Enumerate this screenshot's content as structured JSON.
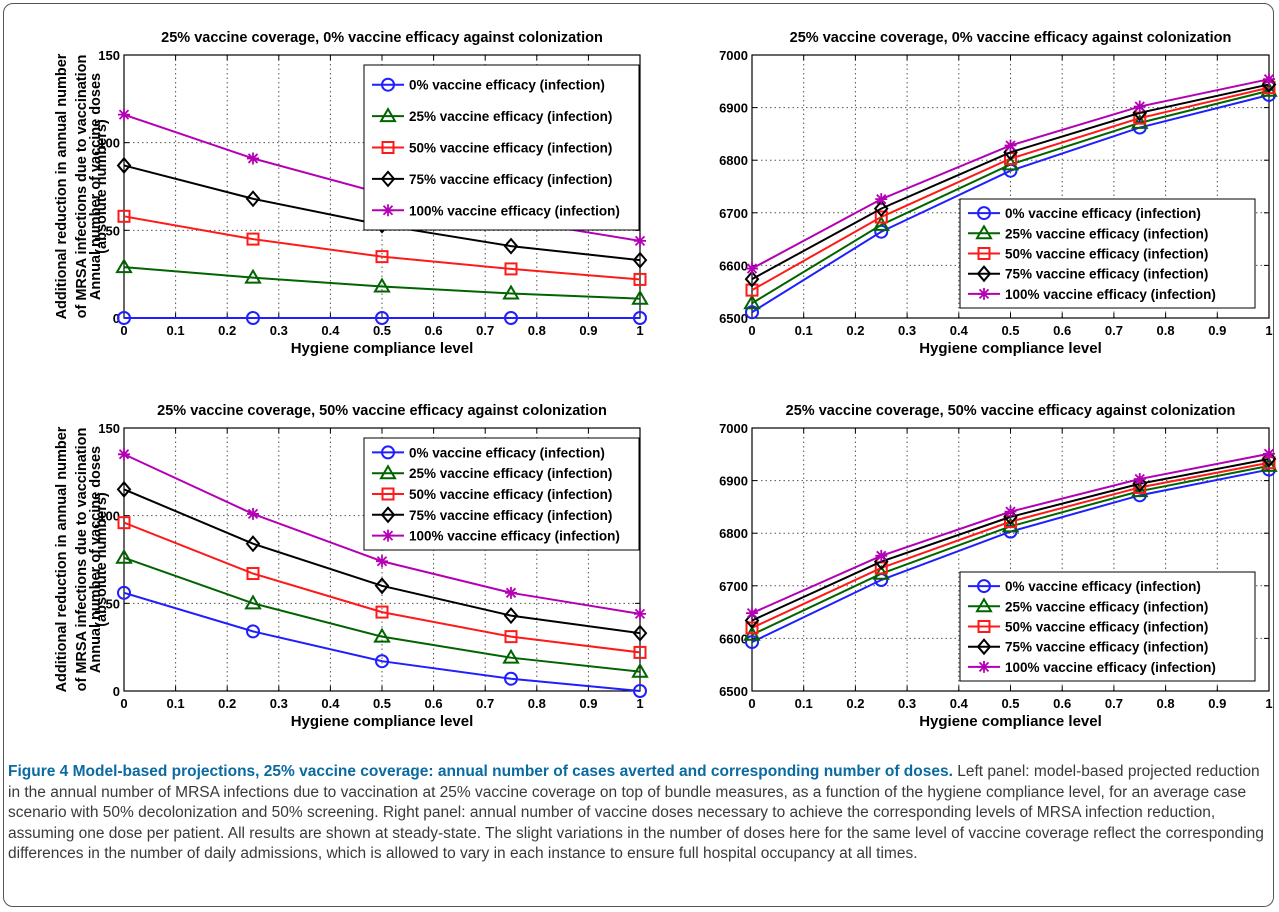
{
  "caption": {
    "title": "Figure 4 Model-based projections, 25% vaccine coverage: annual number of cases averted and corresponding number of doses.",
    "text": " Left panel: model-based projected reduction in the annual number of MRSA infections due to vaccination at 25% vaccine coverage on top of bundle measures, as a function of the hygiene compliance level, for an average case scenario with 50% decolonization and 50% screening. Right panel: annual number of vaccine doses necessary to achieve the corresponding levels of MRSA infection reduction, assuming one dose per patient. All results are shown at steady-state. The slight variations in the number of doses here for the same level of vaccine coverage reflect the corresponding differences in the number of daily admissions, which is allowed to vary in each instance to ensure full hospital occupancy at all times."
  },
  "chart_data": [
    {
      "type": "line",
      "title": "25% vaccine coverage, 0% vaccine efficacy against colonization",
      "xlabel": "Hygiene compliance level",
      "ylabel_lines": [
        "Additional reduction in annual number",
        "of MRSA infections due to vaccination",
        "(absolute numbers)"
      ],
      "xlim": [
        0,
        1
      ],
      "ylim": [
        0,
        150
      ],
      "xticks": [
        0,
        0.1,
        0.2,
        0.3,
        0.4,
        0.5,
        0.6,
        0.7,
        0.8,
        0.9,
        1
      ],
      "xtick_labels": [
        "0",
        "0.1",
        "0.2",
        "0.3",
        "0.4",
        "0.5",
        "0.6",
        "0.7",
        "0.8",
        "0.9",
        "1"
      ],
      "yticks": [
        0,
        50,
        100,
        150
      ],
      "ytick_labels": [
        "0",
        "50",
        "100",
        "150"
      ],
      "grid": true,
      "legend_position": "top-right",
      "x": [
        0,
        0.25,
        0.5,
        0.75,
        1
      ],
      "series": [
        {
          "name": "0% vaccine efficacy (infection)",
          "color": "#1f1fff",
          "marker": "circle",
          "values": [
            0,
            0,
            0,
            0,
            0
          ]
        },
        {
          "name": "25% vaccine efficacy (infection)",
          "color": "#006400",
          "marker": "triangle",
          "values": [
            29,
            23,
            18,
            14,
            11
          ]
        },
        {
          "name": "50% vaccine efficacy (infection)",
          "color": "#ff1a1a",
          "marker": "square",
          "values": [
            58,
            45,
            35,
            28,
            22
          ]
        },
        {
          "name": "75% vaccine efficacy (infection)",
          "color": "#000000",
          "marker": "diamond",
          "values": [
            87,
            68,
            53,
            41,
            33
          ]
        },
        {
          "name": "100% vaccine efficacy (infection)",
          "color": "#b400b4",
          "marker": "star",
          "values": [
            116,
            91,
            71,
            56,
            44
          ]
        }
      ]
    },
    {
      "type": "line",
      "title": "25% vaccine coverage, 0% vaccine efficacy against colonization",
      "xlabel": "Hygiene compliance level",
      "ylabel_lines": [
        "Annual number of vaccine doses"
      ],
      "xlim": [
        0,
        1
      ],
      "ylim": [
        6500,
        7000
      ],
      "xticks": [
        0,
        0.1,
        0.2,
        0.3,
        0.4,
        0.5,
        0.6,
        0.7,
        0.8,
        0.9,
        1
      ],
      "xtick_labels": [
        "0",
        "0.1",
        "0.2",
        "0.3",
        "0.4",
        "0.5",
        "0.6",
        "0.7",
        "0.8",
        "0.9",
        "1"
      ],
      "yticks": [
        6500,
        6600,
        6700,
        6800,
        6900,
        7000
      ],
      "ytick_labels": [
        "6500",
        "6600",
        "6700",
        "6800",
        "6900",
        "7000"
      ],
      "grid": true,
      "legend_position": "bottom-right",
      "x": [
        0,
        0.25,
        0.5,
        0.75,
        1
      ],
      "series": [
        {
          "name": "0% vaccine efficacy (infection)",
          "color": "#1f1fff",
          "marker": "circle",
          "values": [
            6511,
            6664,
            6780,
            6862,
            6924
          ]
        },
        {
          "name": "25% vaccine efficacy (infection)",
          "color": "#006400",
          "marker": "triangle",
          "values": [
            6528,
            6677,
            6792,
            6871,
            6932
          ]
        },
        {
          "name": "50% vaccine efficacy (infection)",
          "color": "#ff1a1a",
          "marker": "square",
          "values": [
            6553,
            6692,
            6803,
            6880,
            6938
          ]
        },
        {
          "name": "75% vaccine efficacy (infection)",
          "color": "#000000",
          "marker": "diamond",
          "values": [
            6574,
            6708,
            6815,
            6890,
            6944
          ]
        },
        {
          "name": "100% vaccine efficacy (infection)",
          "color": "#b400b4",
          "marker": "star",
          "values": [
            6594,
            6726,
            6828,
            6902,
            6954
          ]
        }
      ]
    },
    {
      "type": "line",
      "title": "25% vaccine coverage, 50% vaccine efficacy against colonization",
      "xlabel": "Hygiene compliance level",
      "ylabel_lines": [
        "Additional reduction in annual number",
        "of MRSA infections due to vaccination",
        "(absolute numbers)"
      ],
      "xlim": [
        0,
        1
      ],
      "ylim": [
        0,
        150
      ],
      "xticks": [
        0,
        0.1,
        0.2,
        0.3,
        0.4,
        0.5,
        0.6,
        0.7,
        0.8,
        0.9,
        1
      ],
      "xtick_labels": [
        "0",
        "0.1",
        "0.2",
        "0.3",
        "0.4",
        "0.5",
        "0.6",
        "0.7",
        "0.8",
        "0.9",
        "1"
      ],
      "yticks": [
        0,
        50,
        100,
        150
      ],
      "ytick_labels": [
        "0",
        "50",
        "100",
        "150"
      ],
      "grid": true,
      "legend_position": "top-right",
      "x": [
        0,
        0.25,
        0.5,
        0.75,
        1
      ],
      "series": [
        {
          "name": "0% vaccine efficacy (infection)",
          "color": "#1f1fff",
          "marker": "circle",
          "values": [
            56,
            34,
            17,
            7,
            0
          ]
        },
        {
          "name": "25% vaccine efficacy (infection)",
          "color": "#006400",
          "marker": "triangle",
          "values": [
            76,
            50,
            31,
            19,
            11
          ]
        },
        {
          "name": "50% vaccine efficacy (infection)",
          "color": "#ff1a1a",
          "marker": "square",
          "values": [
            96,
            67,
            45,
            31,
            22
          ]
        },
        {
          "name": "75% vaccine efficacy (infection)",
          "color": "#000000",
          "marker": "diamond",
          "values": [
            115,
            84,
            60,
            43,
            33
          ]
        },
        {
          "name": "100% vaccine efficacy (infection)",
          "color": "#b400b4",
          "marker": "star",
          "values": [
            135,
            101,
            74,
            56,
            44
          ]
        }
      ]
    },
    {
      "type": "line",
      "title": "25% vaccine coverage, 50% vaccine efficacy against colonization",
      "xlabel": "Hygiene compliance level",
      "ylabel_lines": [
        "Annual number of vaccine doses"
      ],
      "xlim": [
        0,
        1
      ],
      "ylim": [
        6500,
        7000
      ],
      "xticks": [
        0,
        0.1,
        0.2,
        0.3,
        0.4,
        0.5,
        0.6,
        0.7,
        0.8,
        0.9,
        1
      ],
      "xtick_labels": [
        "0",
        "0.1",
        "0.2",
        "0.3",
        "0.4",
        "0.5",
        "0.6",
        "0.7",
        "0.8",
        "0.9",
        "1"
      ],
      "yticks": [
        6500,
        6600,
        6700,
        6800,
        6900,
        7000
      ],
      "ytick_labels": [
        "6500",
        "6600",
        "6700",
        "6800",
        "6900",
        "7000"
      ],
      "grid": true,
      "legend_position": "bottom-right",
      "x": [
        0,
        0.25,
        0.5,
        0.75,
        1
      ],
      "series": [
        {
          "name": "0% vaccine efficacy (infection)",
          "color": "#1f1fff",
          "marker": "circle",
          "values": [
            6593,
            6711,
            6803,
            6872,
            6921
          ]
        },
        {
          "name": "25% vaccine efficacy (infection)",
          "color": "#006400",
          "marker": "triangle",
          "values": [
            6607,
            6723,
            6813,
            6880,
            6928
          ]
        },
        {
          "name": "50% vaccine efficacy (infection)",
          "color": "#ff1a1a",
          "marker": "square",
          "values": [
            6620,
            6734,
            6822,
            6887,
            6934
          ]
        },
        {
          "name": "75% vaccine efficacy (infection)",
          "color": "#000000",
          "marker": "diamond",
          "values": [
            6634,
            6746,
            6831,
            6894,
            6941
          ]
        },
        {
          "name": "100% vaccine efficacy (infection)",
          "color": "#b400b4",
          "marker": "star",
          "values": [
            6648,
            6757,
            6841,
            6903,
            6951
          ]
        }
      ]
    }
  ]
}
